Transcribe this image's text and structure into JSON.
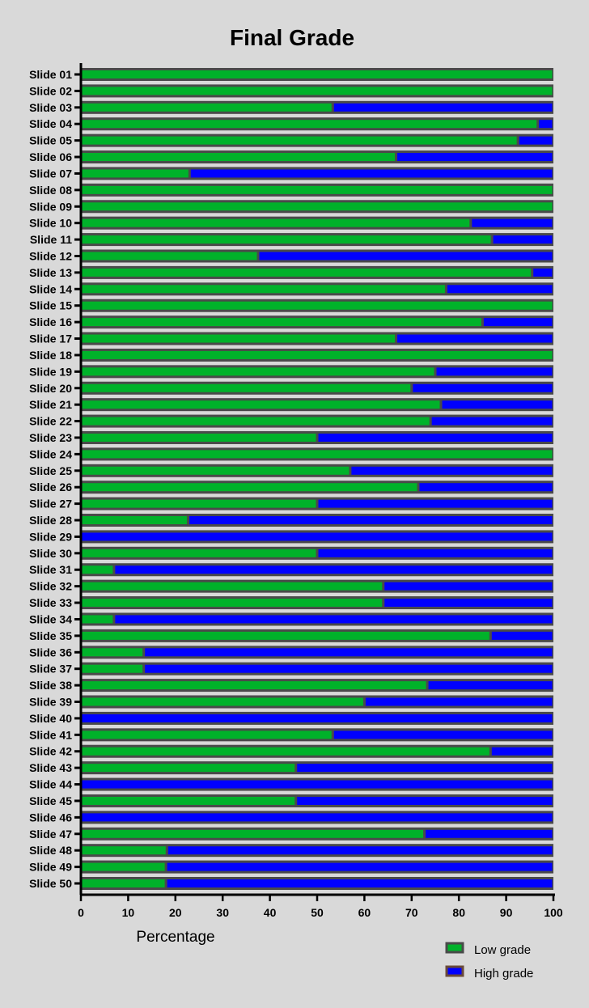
{
  "chart_data": {
    "type": "bar",
    "orientation": "horizontal",
    "stacked": true,
    "title": "Final Grade",
    "xlabel": "Percentage",
    "ylabel": "",
    "xlim": [
      0,
      100
    ],
    "xticks": [
      "0",
      "10",
      "20",
      "30",
      "40",
      "50",
      "60",
      "70",
      "80",
      "90",
      "100"
    ],
    "grid": false,
    "legend_position": "bottom-right",
    "categories": [
      "Slide 01",
      "Slide 02",
      "Slide 03",
      "Slide 04",
      "Slide 05",
      "Slide 06",
      "Slide 07",
      "Slide 08",
      "Slide 09",
      "Slide 10",
      "Slide 11",
      "Slide 12",
      "Slide 13",
      "Slide 14",
      "Slide 15",
      "Slide 16",
      "Slide 17",
      "Slide 18",
      "Slide 19",
      "Slide 20",
      "Slide 21",
      "Slide 22",
      "Slide 23",
      "Slide 24",
      "Slide 25",
      "Slide 26",
      "Slide 27",
      "Slide 28",
      "Slide 29",
      "Slide 30",
      "Slide 31",
      "Slide 32",
      "Slide 33",
      "Slide 34",
      "Slide 35",
      "Slide 36",
      "Slide 37",
      "Slide 38",
      "Slide 39",
      "Slide 40",
      "Slide 41",
      "Slide 42",
      "Slide 43",
      "Slide 44",
      "Slide 45",
      "Slide 46",
      "Slide 47",
      "Slide 48",
      "Slide 49",
      "Slide 50"
    ],
    "series": [
      {
        "name": "Low grade",
        "color": "#00b22a",
        "values": [
          100,
          100,
          53.3,
          96.7,
          92.5,
          66.7,
          23,
          100,
          100,
          82.5,
          87,
          37.5,
          95.5,
          77.3,
          100,
          85,
          66.7,
          100,
          75,
          70,
          76.2,
          74,
          50,
          100,
          57,
          71.4,
          50,
          22.7,
          0,
          50,
          7,
          64,
          64,
          7,
          86.7,
          13.3,
          13.3,
          73.3,
          60,
          0,
          53.3,
          86.7,
          45.5,
          0,
          45.5,
          0,
          72.7,
          18.2,
          18,
          18
        ]
      },
      {
        "name": "High grade",
        "color": "#0000ff",
        "values": [
          0,
          0,
          46.7,
          3.3,
          7.5,
          33.3,
          77,
          0,
          0,
          17.5,
          13,
          62.5,
          4.5,
          22.7,
          0,
          15,
          33.3,
          0,
          25,
          30,
          23.8,
          26,
          50,
          0,
          43,
          28.6,
          50,
          77.3,
          100,
          50,
          93,
          36,
          36,
          93,
          13.3,
          86.7,
          86.7,
          26.7,
          40,
          100,
          46.7,
          13.3,
          54.5,
          100,
          54.5,
          100,
          27.3,
          81.8,
          82,
          82
        ]
      }
    ]
  }
}
